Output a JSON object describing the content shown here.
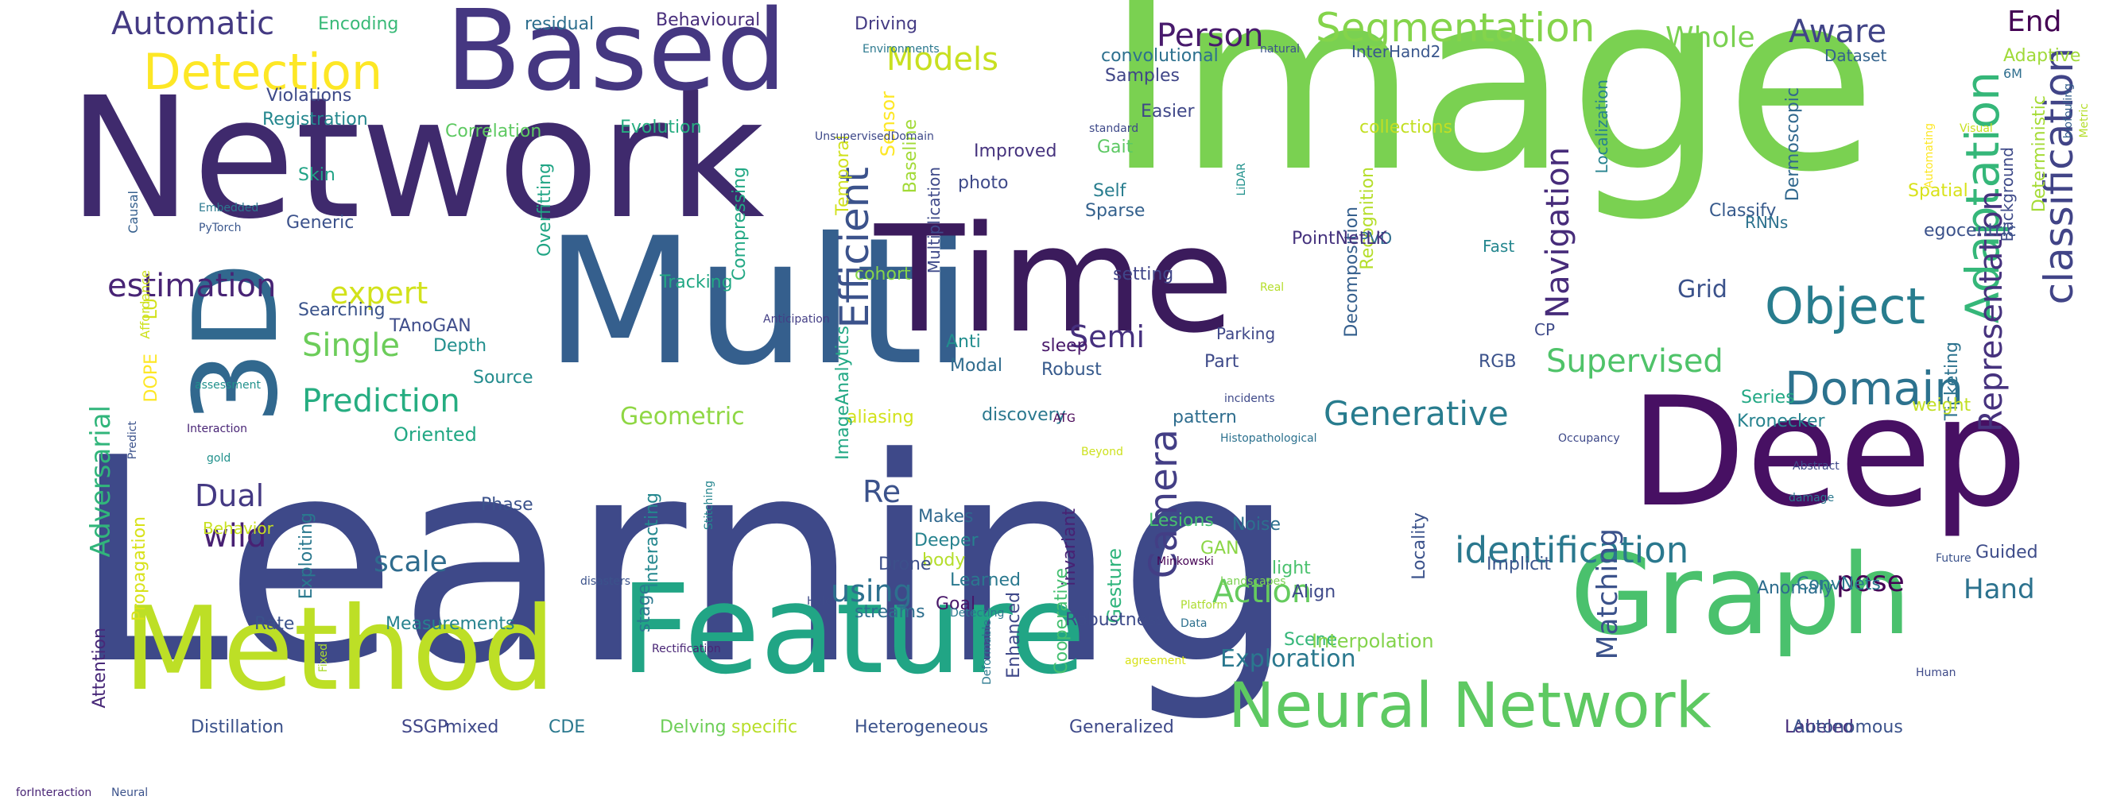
{
  "words": [
    {
      "text": "Learning",
      "color": "#3e4989"
    },
    {
      "text": "Image",
      "color": "#7ad151"
    },
    {
      "text": "Network",
      "color": "#3f2a6d"
    },
    {
      "text": "Multi",
      "color": "#355f8d"
    },
    {
      "text": "Deep",
      "color": "#471063"
    },
    {
      "text": "Time",
      "color": "#3b1b5c"
    },
    {
      "text": "Feature",
      "color": "#21a585"
    },
    {
      "text": "Graph",
      "color": "#4ac16d"
    },
    {
      "text": "Method",
      "color": "#bddf26"
    },
    {
      "text": "Based",
      "color": "#453781"
    },
    {
      "text": "3D",
      "color": "#31688e"
    },
    {
      "text": "Neural Network",
      "color": "#5ec962"
    },
    {
      "text": "Detection",
      "color": "#fde725"
    },
    {
      "text": "Segmentation",
      "color": "#84d44b"
    },
    {
      "text": "Object",
      "color": "#287d8e"
    },
    {
      "text": "Domain",
      "color": "#2c728e"
    },
    {
      "text": "Adaptation",
      "color": "#35b779"
    },
    {
      "text": "classification",
      "color": "#414487"
    },
    {
      "text": "Representation",
      "color": "#46327e"
    },
    {
      "text": "identification",
      "color": "#2a788e"
    },
    {
      "text": "Camera",
      "color": "#433e85"
    },
    {
      "text": "Efficient",
      "color": "#3b528b"
    },
    {
      "text": "Generative",
      "color": "#287c8e"
    },
    {
      "text": "Adversarial",
      "color": "#31b57b"
    },
    {
      "text": "estimation",
      "color": "#482475"
    },
    {
      "text": "Prediction",
      "color": "#26ad81"
    },
    {
      "text": "Navigation",
      "color": "#472c7a"
    },
    {
      "text": "Supervised",
      "color": "#4fc369"
    },
    {
      "text": "Single",
      "color": "#6ccd5a"
    },
    {
      "text": "Action",
      "color": "#65cb5e"
    },
    {
      "text": "Matching",
      "color": "#3b528b"
    },
    {
      "text": "Models",
      "color": "#c8e020"
    },
    {
      "text": "Person",
      "color": "#481a6c"
    },
    {
      "text": "Automatic",
      "color": "#443a83"
    },
    {
      "text": "Aware",
      "color": "#414487"
    },
    {
      "text": "End",
      "color": "#440154"
    },
    {
      "text": "Whole",
      "color": "#7ad151"
    },
    {
      "text": "expert",
      "color": "#d2e21b"
    },
    {
      "text": "Semi",
      "color": "#46307e"
    },
    {
      "text": "Dual",
      "color": "#443983"
    },
    {
      "text": "wild",
      "color": "#482173"
    },
    {
      "text": "Re",
      "color": "#3b528b"
    },
    {
      "text": "using",
      "color": "#2d708e"
    },
    {
      "text": "scale",
      "color": "#2f6c8e"
    },
    {
      "text": "Grid",
      "color": "#3b528b"
    },
    {
      "text": "Hand",
      "color": "#2c728e"
    },
    {
      "text": "pose",
      "color": "#440154"
    },
    {
      "text": "Exploration",
      "color": "#2a788e"
    },
    {
      "text": "Geometric",
      "color": "#8fd744"
    },
    {
      "text": "Oriented",
      "color": "#22a884"
    },
    {
      "text": "Encoding",
      "color": "#38b977"
    },
    {
      "text": "residual",
      "color": "#2e6f8e"
    },
    {
      "text": "Behavioural",
      "color": "#472d7b"
    },
    {
      "text": "Driving",
      "color": "#443b84"
    },
    {
      "text": "InterHand2",
      "color": "#39568c"
    },
    {
      "text": "convolutional",
      "color": "#2d708e"
    },
    {
      "text": "Samples",
      "color": "#404688"
    },
    {
      "text": "Easier",
      "color": "#3f4788"
    },
    {
      "text": "Gait",
      "color": "#5cc863"
    },
    {
      "text": "Self",
      "color": "#287d8e"
    },
    {
      "text": "Sparse",
      "color": "#34618d"
    },
    {
      "text": "photo",
      "color": "#3e4989"
    },
    {
      "text": "Improved",
      "color": "#46337e"
    },
    {
      "text": "Evolution",
      "color": "#27ad81"
    },
    {
      "text": "Correlation",
      "color": "#5ec962"
    },
    {
      "text": "Registration",
      "color": "#24878e"
    },
    {
      "text": "Violations",
      "color": "#3e4a89"
    },
    {
      "text": "Skin",
      "color": "#20a386"
    },
    {
      "text": "Generic",
      "color": "#3b518b"
    },
    {
      "text": "Sensor",
      "color": "#fde725"
    },
    {
      "text": "collections",
      "color": "#c2df23"
    },
    {
      "text": "Recognition",
      "color": "#b5de2b"
    },
    {
      "text": "Decomposition",
      "color": "#355f8d"
    },
    {
      "text": "Dermoscopic",
      "color": "#31688e"
    },
    {
      "text": "Localization",
      "color": "#26828e"
    },
    {
      "text": "Deterministic",
      "color": "#a5db36"
    },
    {
      "text": "Classify",
      "color": "#375a8c"
    },
    {
      "text": "Spatial",
      "color": "#d8e219"
    },
    {
      "text": "Dataset",
      "color": "#33638d"
    },
    {
      "text": "Adaptive",
      "color": "#a0da39"
    },
    {
      "text": "6M",
      "color": "#2e6e8e"
    },
    {
      "text": "RNNs",
      "color": "#2c718e"
    },
    {
      "text": "PVD",
      "color": "#2f6c8e"
    },
    {
      "text": "Background",
      "color": "#3e4a89"
    },
    {
      "text": "egocentric",
      "color": "#3b528b"
    },
    {
      "text": "Tracking",
      "color": "#22a884"
    },
    {
      "text": "cohort",
      "color": "#86d549"
    },
    {
      "text": "setting",
      "color": "#404588"
    },
    {
      "text": "PointNetLK",
      "color": "#46337e"
    },
    {
      "text": "Fast",
      "color": "#24868e"
    },
    {
      "text": "Searching",
      "color": "#3a538b"
    },
    {
      "text": "TAnoGAN",
      "color": "#3e4c8a"
    },
    {
      "text": "Depth",
      "color": "#218f8d"
    },
    {
      "text": "Source",
      "color": "#228b8d"
    },
    {
      "text": "Anti",
      "color": "#228d8d"
    },
    {
      "text": "Modal",
      "color": "#2f6c8e"
    },
    {
      "text": "sleep",
      "color": "#48186a"
    },
    {
      "text": "Robust",
      "color": "#375a8c"
    },
    {
      "text": "Parking",
      "color": "#3f4889"
    },
    {
      "text": "Part",
      "color": "#3e4a89"
    },
    {
      "text": "RGB",
      "color": "#3b528b"
    },
    {
      "text": "CP",
      "color": "#3e4a89"
    },
    {
      "text": "Ticketing",
      "color": "#2c728e"
    },
    {
      "text": "Series",
      "color": "#22a884"
    },
    {
      "text": "weight",
      "color": "#c2df23"
    },
    {
      "text": "Kronecker",
      "color": "#26828e"
    },
    {
      "text": "aliasing",
      "color": "#d2e21b"
    },
    {
      "text": "discovery",
      "color": "#2a788e"
    },
    {
      "text": "pattern",
      "color": "#2e6d8e"
    },
    {
      "text": "Phase",
      "color": "#3b528b"
    },
    {
      "text": "Makes",
      "color": "#30688e"
    },
    {
      "text": "Deeper",
      "color": "#26828e"
    },
    {
      "text": "body",
      "color": "#b5de2b"
    },
    {
      "text": "Drone",
      "color": "#3c4f8a"
    },
    {
      "text": "Learned",
      "color": "#2a788e"
    },
    {
      "text": "Goal",
      "color": "#481769"
    },
    {
      "text": "streams",
      "color": "#2e6f8e"
    },
    {
      "text": "invariant",
      "color": "#482173"
    },
    {
      "text": "Enhanced",
      "color": "#3f4889"
    },
    {
      "text": "Cooperative",
      "color": "#44bf70"
    },
    {
      "text": "Gesture",
      "color": "#2fb47c"
    },
    {
      "text": "Lesions",
      "color": "#46c06f"
    },
    {
      "text": "GAN",
      "color": "#8bd646"
    },
    {
      "text": "Noise",
      "color": "#2d708e"
    },
    {
      "text": "light",
      "color": "#4ac16d"
    },
    {
      "text": "Align",
      "color": "#3e4989"
    },
    {
      "text": "Locality",
      "color": "#3b528b"
    },
    {
      "text": "Implicit",
      "color": "#3a548c"
    },
    {
      "text": "Anomaly",
      "color": "#2e6d8e"
    },
    {
      "text": "ConvNets",
      "color": "#2a788e"
    },
    {
      "text": "Guided",
      "color": "#3e4c8a"
    },
    {
      "text": "Scene",
      "color": "#34b679"
    },
    {
      "text": "Robustness",
      "color": "#3e4a89"
    },
    {
      "text": "Interpolation",
      "color": "#83d34b"
    },
    {
      "text": "Heterogeneous",
      "color": "#3b528b"
    },
    {
      "text": "Generalized",
      "color": "#3e4989"
    },
    {
      "text": "Labeled",
      "color": "#472d7b"
    },
    {
      "text": "Autonomous",
      "color": "#3b528b"
    },
    {
      "text": "Delving",
      "color": "#6ece58"
    },
    {
      "text": "specific",
      "color": "#b8de29"
    },
    {
      "text": "CDE",
      "color": "#2a788e"
    },
    {
      "text": "mixed",
      "color": "#3e4989"
    },
    {
      "text": "SSGP",
      "color": "#404688"
    },
    {
      "text": "Distillation",
      "color": "#3b528b"
    },
    {
      "text": "Measurements",
      "color": "#26828e"
    },
    {
      "text": "Rate",
      "color": "#3b528b"
    },
    {
      "text": "Behavior",
      "color": "#c8e020"
    },
    {
      "text": "Exploiting",
      "color": "#2a788e"
    },
    {
      "text": "Propagation",
      "color": "#d8e219"
    },
    {
      "text": "Attention",
      "color": "#482878"
    },
    {
      "text": "stage",
      "color": "#2a788e"
    },
    {
      "text": "Interacting",
      "color": "#24878e"
    },
    {
      "text": "Temporal",
      "color": "#d0e11c"
    },
    {
      "text": "Baseline",
      "color": "#a2da37"
    },
    {
      "text": "Multiplication",
      "color": "#3e4989"
    },
    {
      "text": "Compressing",
      "color": "#22a884"
    },
    {
      "text": "Overfitting",
      "color": "#21a585"
    },
    {
      "text": "DOPE",
      "color": "#fde725"
    },
    {
      "text": "LU",
      "color": "#d2e21b"
    },
    {
      "text": "Affordance",
      "color": "#cde11d"
    },
    {
      "text": "Causal",
      "color": "#355f8d"
    },
    {
      "text": "Embedded",
      "color": "#2a788e"
    },
    {
      "text": "PyTorch",
      "color": "#39568c"
    },
    {
      "text": "assessment",
      "color": "#21918c"
    },
    {
      "text": "Interaction",
      "color": "#482475"
    },
    {
      "text": "Predict",
      "color": "#3b528b"
    },
    {
      "text": "gold",
      "color": "#21918c"
    },
    {
      "text": "disasters",
      "color": "#3b528b"
    },
    {
      "text": "Fixed",
      "color": "#addc30"
    },
    {
      "text": "Rectification",
      "color": "#482475"
    },
    {
      "text": "Held",
      "color": "#3e4a89"
    },
    {
      "text": "Stitching",
      "color": "#25858e"
    },
    {
      "text": "ATG",
      "color": "#440154"
    },
    {
      "text": "Beyond",
      "color": "#cde11d"
    },
    {
      "text": "incidents",
      "color": "#3e4989"
    },
    {
      "text": "Anticipation",
      "color": "#433e85"
    },
    {
      "text": "Real",
      "color": "#b5de2b"
    },
    {
      "text": "Automating",
      "color": "#fde725"
    },
    {
      "text": "Histopathological",
      "color": "#2c718e"
    },
    {
      "text": "Occupancy",
      "color": "#3e4989"
    },
    {
      "text": "Landscapes",
      "color": "#7ad151"
    },
    {
      "text": "Minkowski",
      "color": "#440154"
    },
    {
      "text": "Future",
      "color": "#3b528b"
    },
    {
      "text": "Abstract",
      "color": "#3e4989"
    },
    {
      "text": "damage",
      "color": "#2a788e"
    },
    {
      "text": "Data",
      "color": "#2d708e"
    },
    {
      "text": "Platform",
      "color": "#addc30"
    },
    {
      "text": "Deformable",
      "color": "#2a788e"
    },
    {
      "text": "agreement",
      "color": "#d8e219"
    },
    {
      "text": "Human",
      "color": "#3e4a89"
    },
    {
      "text": "Detecting",
      "color": "#2a788e"
    },
    {
      "text": "UnsupervisedDomain",
      "color": "#3e4989"
    },
    {
      "text": "standard",
      "color": "#3e4989"
    },
    {
      "text": "LiDAR",
      "color": "#21918c"
    },
    {
      "text": "Visual",
      "color": "#c8e020"
    },
    {
      "text": "Metric",
      "color": "#b5de2b"
    },
    {
      "text": "biofouling",
      "color": "#355f8d"
    },
    {
      "text": "natural",
      "color": "#3b528b"
    },
    {
      "text": "Environments",
      "color": "#2a788e"
    },
    {
      "text": "ImageAnalytics",
      "color": "#22a884"
    },
    {
      "text": "forInteraction",
      "color": "#482475"
    },
    {
      "text": "Neural",
      "color": "#3b528b"
    }
  ]
}
